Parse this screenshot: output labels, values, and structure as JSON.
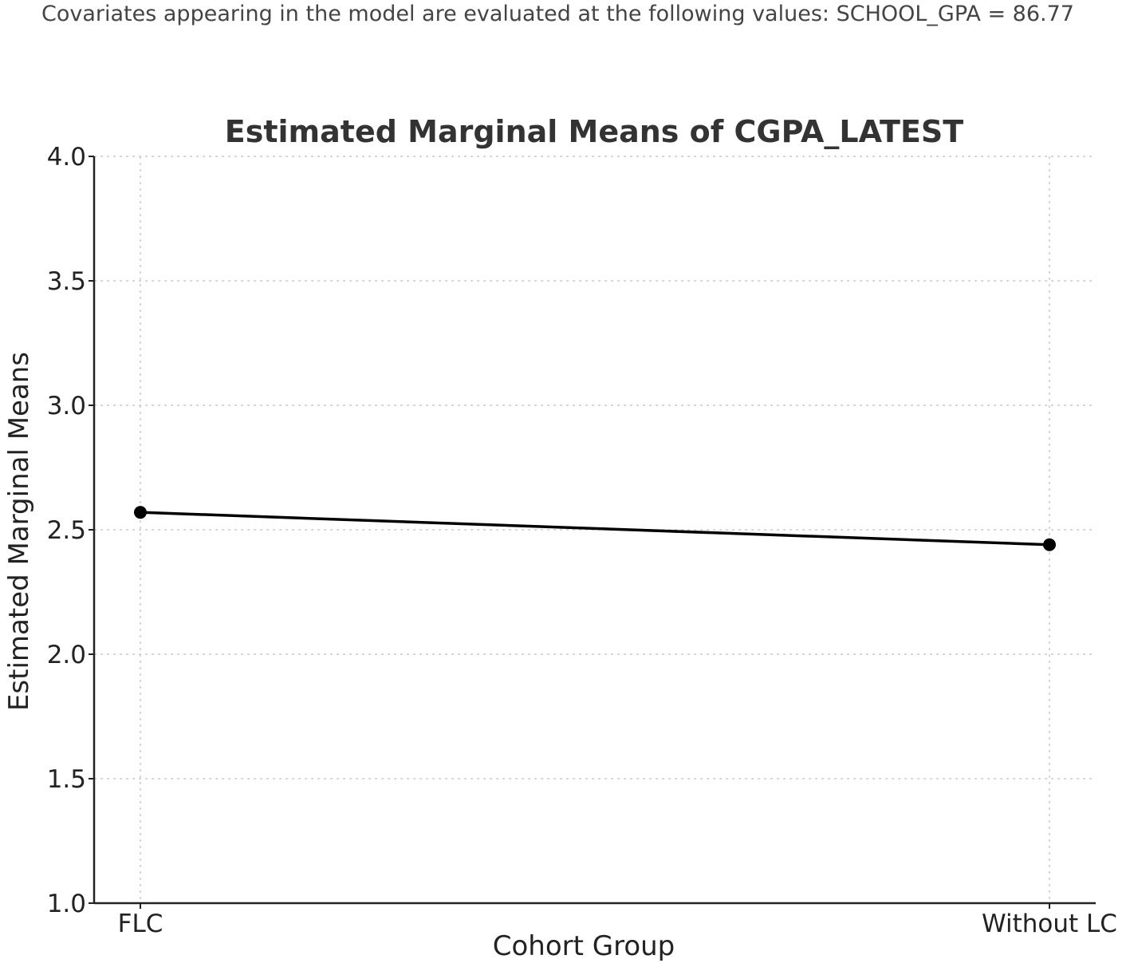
{
  "note": "Covariates appearing in the model are evaluated at the following values: SCHOOL_GPA = 86.77",
  "chart_data": {
    "type": "line",
    "title": "Estimated Marginal Means of CGPA_LATEST",
    "xlabel": "Cohort Group",
    "ylabel": "Estimated Marginal Means",
    "categories": [
      "FLC",
      "Without LC"
    ],
    "values": [
      2.57,
      2.44
    ],
    "ylim": [
      1.0,
      4.0
    ],
    "yticks": [
      "1.0",
      "1.5",
      "2.0",
      "2.5",
      "3.0",
      "3.5",
      "4.0"
    ],
    "grid": true,
    "line_color": "#000000",
    "marker": "circle"
  }
}
